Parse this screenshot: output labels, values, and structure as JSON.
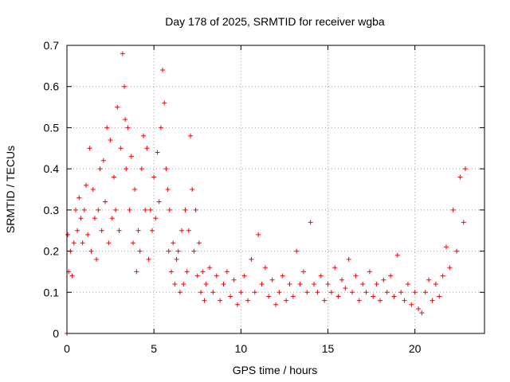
{
  "chart_data": {
    "type": "scatter",
    "title": "Day 178 of 2025, SRMTID for receiver wgba",
    "xlabel": "GPS time / hours",
    "ylabel": "SRMTID / TECUs",
    "xlim": [
      0,
      24
    ],
    "ylim": [
      0,
      0.7
    ],
    "xticks": [
      0,
      5,
      10,
      15,
      20
    ],
    "xtick_labels": [
      "0",
      "5",
      "10",
      "15",
      "20"
    ],
    "yticks": [
      0,
      0.1,
      0.2,
      0.3,
      0.4,
      0.5,
      0.6,
      0.7
    ],
    "ytick_labels": [
      "0",
      "0.1",
      "0.2",
      "0.3",
      "0.4",
      "0.5",
      "0.6",
      "0.7"
    ],
    "grid": true,
    "marker": "+",
    "color": "#ff0000",
    "series": [
      {
        "name": "SRMTID",
        "x": [
          0.0,
          0.05,
          0.1,
          0.2,
          0.3,
          0.4,
          0.5,
          0.6,
          0.7,
          0.8,
          0.9,
          1.0,
          1.1,
          1.2,
          1.3,
          1.4,
          1.5,
          1.6,
          1.7,
          1.8,
          1.9,
          2.0,
          2.1,
          2.2,
          2.3,
          2.4,
          2.5,
          2.6,
          2.7,
          2.8,
          2.9,
          3.0,
          3.1,
          3.2,
          3.3,
          3.35,
          3.4,
          3.5,
          3.6,
          3.7,
          3.8,
          3.9,
          4.0,
          4.1,
          4.2,
          4.3,
          4.4,
          4.5,
          4.6,
          4.7,
          4.8,
          4.9,
          5.0,
          5.1,
          5.2,
          5.3,
          5.4,
          5.5,
          5.6,
          5.7,
          5.8,
          5.85,
          5.9,
          6.0,
          6.1,
          6.2,
          6.3,
          6.4,
          6.5,
          6.6,
          6.7,
          6.8,
          6.9,
          7.0,
          7.1,
          7.2,
          7.3,
          7.4,
          7.5,
          7.6,
          7.7,
          7.8,
          7.9,
          8.0,
          8.2,
          8.4,
          8.6,
          8.8,
          9.0,
          9.2,
          9.4,
          9.6,
          9.8,
          10.0,
          10.2,
          10.4,
          10.6,
          10.8,
          11.0,
          11.2,
          11.4,
          11.6,
          11.8,
          12.0,
          12.2,
          12.4,
          12.6,
          12.8,
          13.0,
          13.2,
          13.4,
          13.6,
          13.8,
          14.0,
          14.2,
          14.4,
          14.6,
          14.8,
          15.0,
          15.2,
          15.4,
          15.6,
          15.8,
          16.0,
          16.2,
          16.4,
          16.6,
          16.8,
          17.0,
          17.2,
          17.4,
          17.6,
          17.8,
          18.0,
          18.2,
          18.4,
          18.6,
          18.8,
          19.0,
          19.2,
          19.4,
          19.6,
          19.8,
          20.0,
          20.2,
          20.4,
          20.6,
          20.8,
          21.0,
          21.2,
          21.4,
          21.6,
          21.8,
          22.0,
          22.2,
          22.4,
          22.6,
          22.8,
          22.9
        ],
        "y": [
          0.0,
          0.24,
          0.15,
          0.2,
          0.14,
          0.22,
          0.3,
          0.25,
          0.33,
          0.28,
          0.22,
          0.3,
          0.36,
          0.24,
          0.45,
          0.2,
          0.35,
          0.28,
          0.18,
          0.3,
          0.4,
          0.25,
          0.42,
          0.32,
          0.5,
          0.22,
          0.47,
          0.28,
          0.38,
          0.3,
          0.55,
          0.25,
          0.45,
          0.68,
          0.6,
          0.52,
          0.4,
          0.5,
          0.3,
          0.43,
          0.22,
          0.35,
          0.15,
          0.25,
          0.2,
          0.4,
          0.48,
          0.3,
          0.45,
          0.18,
          0.3,
          0.25,
          0.38,
          0.28,
          0.44,
          0.32,
          0.5,
          0.64,
          0.56,
          0.4,
          0.35,
          0.2,
          0.3,
          0.15,
          0.22,
          0.12,
          0.18,
          0.2,
          0.1,
          0.25,
          0.12,
          0.3,
          0.15,
          0.25,
          0.48,
          0.35,
          0.2,
          0.3,
          0.14,
          0.22,
          0.1,
          0.15,
          0.08,
          0.12,
          0.16,
          0.1,
          0.14,
          0.08,
          0.12,
          0.15,
          0.09,
          0.13,
          0.07,
          0.1,
          0.14,
          0.08,
          0.18,
          0.1,
          0.24,
          0.12,
          0.16,
          0.09,
          0.13,
          0.07,
          0.1,
          0.14,
          0.08,
          0.12,
          0.09,
          0.2,
          0.12,
          0.15,
          0.1,
          0.27,
          0.12,
          0.1,
          0.14,
          0.08,
          0.12,
          0.1,
          0.16,
          0.09,
          0.13,
          0.11,
          0.18,
          0.1,
          0.14,
          0.08,
          0.12,
          0.1,
          0.15,
          0.09,
          0.12,
          0.08,
          0.13,
          0.1,
          0.14,
          0.09,
          0.19,
          0.1,
          0.08,
          0.12,
          0.07,
          0.1,
          0.06,
          0.05,
          0.1,
          0.13,
          0.08,
          0.12,
          0.09,
          0.14,
          0.21,
          0.16,
          0.3,
          0.2,
          0.38,
          0.27,
          0.4
        ]
      }
    ]
  }
}
